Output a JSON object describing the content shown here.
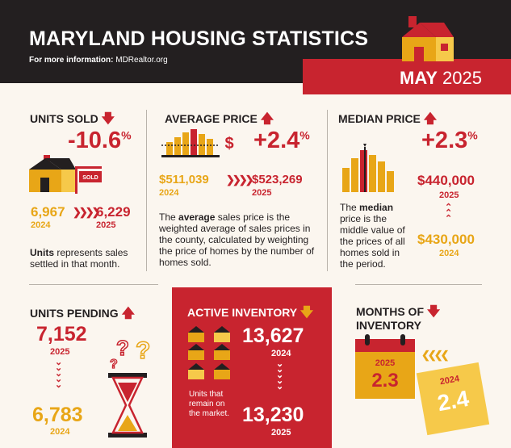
{
  "header": {
    "title": "MARYLAND HOUSING STATISTICS",
    "info_label": "For more information:",
    "info_link": "MDRealtor.org",
    "month": "MAY",
    "year": "2025"
  },
  "units_sold": {
    "heading": "UNITS SOLD",
    "change": "-10.6",
    "pct": "%",
    "sign_label": "SOLD",
    "prev_value": "6,967",
    "prev_year": "2024",
    "curr_value": "6,229",
    "curr_year": "2025",
    "note_bold": "Units",
    "note_rest": " represents sales settled in that month."
  },
  "average_price": {
    "heading": "AVERAGE PRICE",
    "change": "+2.4",
    "pct": "%",
    "dollar": "$",
    "prev_value": "$511,039",
    "prev_year": "2024",
    "curr_value": "$523,269",
    "curr_year": "2025",
    "note_pre": "The ",
    "note_bold": "average",
    "note_rest": " sales price is the weighted average of sales prices in the county, calculated by weighting the price of homes by the number of homes sold."
  },
  "median_price": {
    "heading": "MEDIAN PRICE",
    "change": "+2.3",
    "pct": "%",
    "curr_value": "$440,000",
    "curr_year": "2025",
    "prev_value": "$430,000",
    "prev_year": "2024",
    "note_pre": "The ",
    "note_bold": "median",
    "note_rest": " price is the middle value of the prices of all homes sold in the period."
  },
  "units_pending": {
    "heading": "UNITS PENDING",
    "curr_value": "7,152",
    "curr_year": "2025",
    "prev_value": "6,783",
    "prev_year": "2024"
  },
  "active_inventory": {
    "heading": "ACTIVE INVENTORY",
    "prev_value": "13,627",
    "prev_year": "2024",
    "curr_value": "13,230",
    "curr_year": "2025",
    "note": "Units that remain on the market."
  },
  "months_inventory": {
    "heading_line1": "MONTHS OF",
    "heading_line2": "INVENTORY",
    "curr_year": "2025",
    "curr_value": "2.3",
    "prev_year": "2024",
    "prev_value": "2.4"
  },
  "colors": {
    "red": "#c8242f",
    "gold": "#e8a617",
    "dark": "#231f20",
    "cream": "#fbf6ef"
  },
  "icons": [
    "house-icon",
    "sold-house-icon",
    "bar-chart-dollar-icon",
    "bar-chart-median-icon",
    "hourglass-icon",
    "question-marks-icon",
    "houses-grid-icon",
    "calendar-icon",
    "up-arrow-icon",
    "down-arrow-icon",
    "chevrons-icon"
  ]
}
